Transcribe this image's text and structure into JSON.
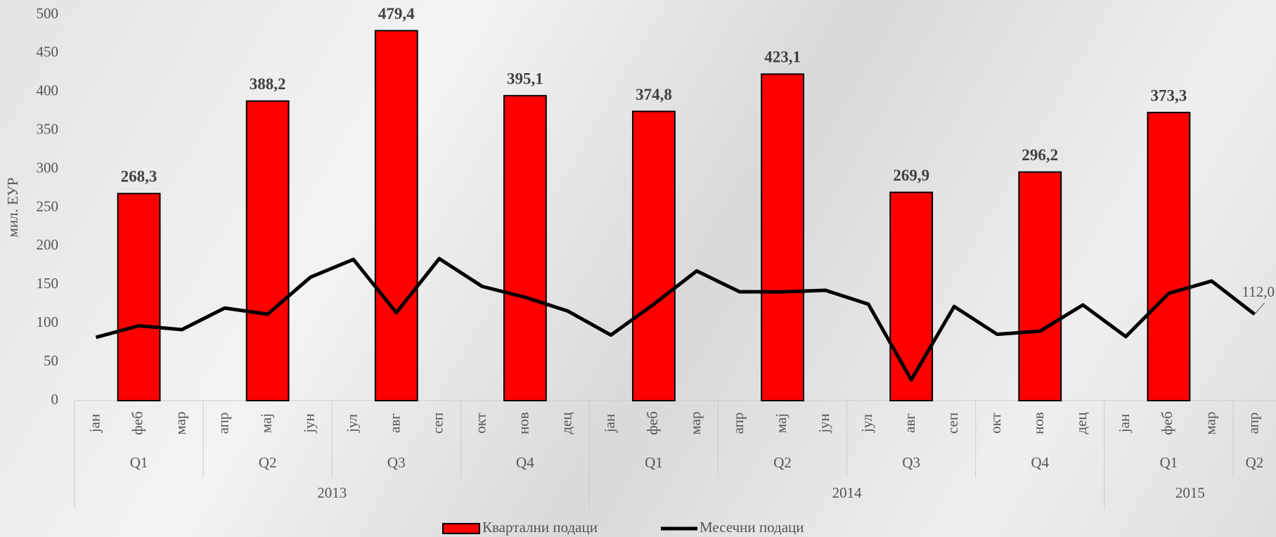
{
  "chart_data": {
    "type": "bar-line",
    "y_label": "мил. ЕУР",
    "categories": [
      "јан",
      "феб",
      "мар",
      "апр",
      "мај",
      "јун",
      "јул",
      "авг",
      "сеп",
      "окт",
      "нов",
      "дец",
      "јан",
      "феб",
      "мар",
      "апр",
      "мај",
      "јун",
      "јул",
      "авг",
      "сеп",
      "окт",
      "нов",
      "дец",
      "јан",
      "феб",
      "мар",
      "апр"
    ],
    "quarters": [
      "Q1",
      "Q2",
      "Q3",
      "Q4",
      "Q1",
      "Q2",
      "Q3",
      "Q4",
      "Q1",
      "Q2"
    ],
    "years": [
      "2013",
      "2014",
      "2015"
    ],
    "series": [
      {
        "name": "Квартални подаци",
        "type": "bar",
        "color": "#ff0000",
        "values": [
          null,
          268.3,
          null,
          null,
          388.2,
          null,
          null,
          479.4,
          null,
          null,
          395.1,
          null,
          null,
          374.8,
          null,
          null,
          423.1,
          null,
          null,
          269.9,
          null,
          null,
          296.2,
          null,
          null,
          373.3,
          null,
          null
        ],
        "value_labels": [
          null,
          "268,3",
          null,
          null,
          "388,2",
          null,
          null,
          "479,4",
          null,
          null,
          "395,1",
          null,
          null,
          "374,8",
          null,
          null,
          "423,1",
          null,
          null,
          "269,9",
          null,
          null,
          "296,2",
          null,
          null,
          "373,3",
          null,
          null
        ]
      },
      {
        "name": "Месечни подаци",
        "type": "line",
        "color": "#000000",
        "values": [
          82,
          97,
          92,
          120,
          112,
          160,
          183,
          114,
          184,
          148,
          134,
          116,
          85,
          125,
          168,
          141,
          141,
          143,
          125,
          27,
          122,
          86,
          90,
          124,
          83,
          139,
          155,
          112.0
        ],
        "value_labels": [
          null,
          null,
          null,
          null,
          null,
          null,
          null,
          null,
          null,
          null,
          null,
          null,
          null,
          null,
          null,
          null,
          null,
          null,
          null,
          null,
          null,
          null,
          null,
          null,
          null,
          null,
          null,
          "112,0"
        ]
      }
    ],
    "ylim": [
      0,
      500
    ],
    "yticks": [
      0,
      50,
      100,
      150,
      200,
      250,
      300,
      350,
      400,
      450,
      500
    ],
    "grid": false
  }
}
